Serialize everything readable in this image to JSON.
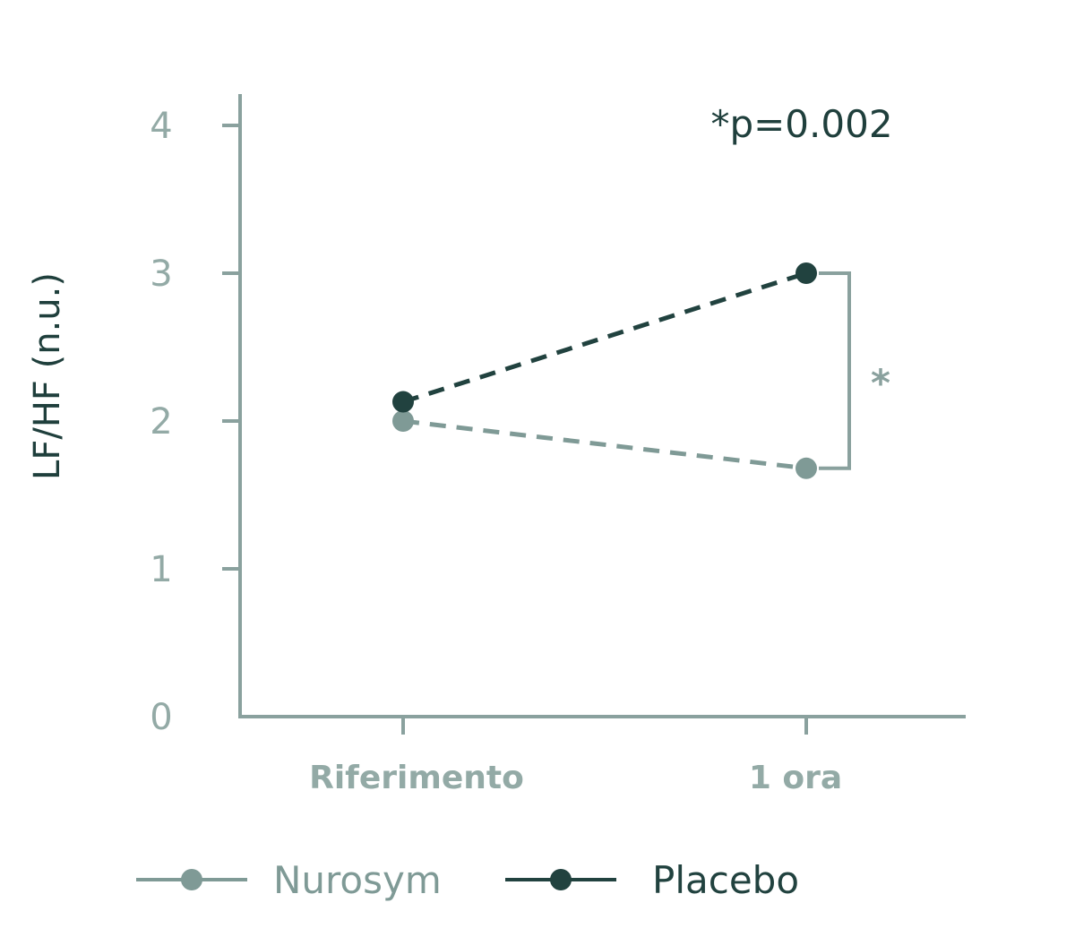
{
  "chart_data": {
    "type": "line",
    "categories": [
      "Riferimento",
      "1 ora"
    ],
    "ylabel": "LF/HF (n.u.)",
    "ylim": [
      0,
      4
    ],
    "yticks": [
      0,
      1,
      2,
      3,
      4
    ],
    "grid": false,
    "legend_position": "bottom",
    "series": [
      {
        "name": "Nurosym",
        "values": [
          2.0,
          1.68
        ],
        "color": "#7f9a96",
        "line_style": "dashed"
      },
      {
        "name": "Placebo",
        "values": [
          2.13,
          3.0
        ],
        "color": "#21423f",
        "line_style": "dashed"
      }
    ],
    "annotations": {
      "p_value": "*p=0.002",
      "significance_mark": "*"
    },
    "colors": {
      "axis": "#8aa19e",
      "tick_text": "#93aaa6",
      "dark_text": "#1f3f3c"
    }
  }
}
